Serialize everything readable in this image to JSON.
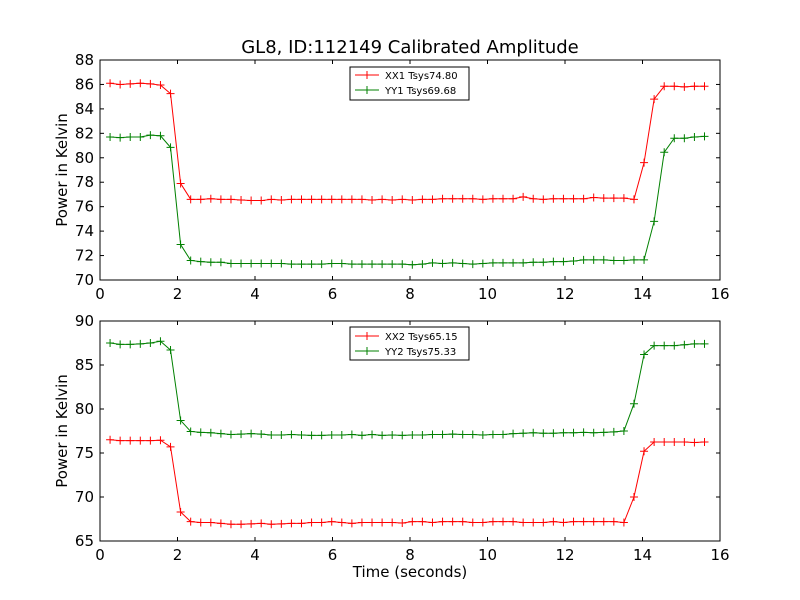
{
  "figure": {
    "title": "GL8, ID:112149 Calibrated Amplitude",
    "xlabel": "Time (seconds)"
  },
  "chart_data": [
    {
      "type": "line",
      "title": "GL8, ID:112149 Calibrated Amplitude",
      "xlabel": "",
      "ylabel": "Power in Kelvin",
      "xlim": [
        0,
        16
      ],
      "ylim": [
        70,
        88
      ],
      "xticks": [
        0,
        2,
        4,
        6,
        8,
        10,
        12,
        14,
        16
      ],
      "yticks": [
        70,
        72,
        74,
        76,
        78,
        80,
        82,
        84,
        86,
        88
      ],
      "grid": false,
      "legend_position": "top-center",
      "x": [
        0.26,
        0.52,
        0.78,
        1.04,
        1.3,
        1.56,
        1.82,
        2.08,
        2.34,
        2.6,
        2.86,
        3.12,
        3.38,
        3.64,
        3.9,
        4.16,
        4.42,
        4.68,
        4.94,
        5.2,
        5.46,
        5.72,
        5.98,
        6.24,
        6.5,
        6.76,
        7.02,
        7.28,
        7.54,
        7.8,
        8.06,
        8.32,
        8.58,
        8.84,
        9.1,
        9.36,
        9.62,
        9.88,
        10.14,
        10.4,
        10.66,
        10.92,
        11.18,
        11.44,
        11.7,
        11.96,
        12.22,
        12.48,
        12.74,
        13.0,
        13.26,
        13.52,
        13.78,
        14.04,
        14.3,
        14.56,
        14.82,
        15.08,
        15.34,
        15.6
      ],
      "series": [
        {
          "name": "XX1 Tsys74.80",
          "color": "#ff0000",
          "values": [
            86.1,
            86.0,
            86.05,
            86.1,
            86.05,
            85.95,
            85.25,
            77.9,
            76.6,
            76.6,
            76.65,
            76.6,
            76.6,
            76.55,
            76.5,
            76.5,
            76.6,
            76.55,
            76.6,
            76.6,
            76.6,
            76.6,
            76.6,
            76.6,
            76.6,
            76.6,
            76.55,
            76.6,
            76.55,
            76.6,
            76.55,
            76.6,
            76.6,
            76.65,
            76.65,
            76.65,
            76.65,
            76.6,
            76.65,
            76.65,
            76.65,
            76.8,
            76.65,
            76.6,
            76.65,
            76.65,
            76.65,
            76.65,
            76.75,
            76.7,
            76.7,
            76.7,
            76.6,
            79.6,
            84.8,
            85.85,
            85.85,
            85.8,
            85.85,
            85.85
          ]
        },
        {
          "name": "YY1 Tsys69.68",
          "color": "#008000",
          "values": [
            81.7,
            81.65,
            81.7,
            81.7,
            81.85,
            81.8,
            80.85,
            72.9,
            71.6,
            71.5,
            71.45,
            71.45,
            71.35,
            71.35,
            71.35,
            71.35,
            71.35,
            71.35,
            71.3,
            71.3,
            71.3,
            71.3,
            71.35,
            71.35,
            71.3,
            71.3,
            71.3,
            71.3,
            71.3,
            71.3,
            71.25,
            71.3,
            71.4,
            71.35,
            71.4,
            71.35,
            71.3,
            71.35,
            71.4,
            71.4,
            71.4,
            71.4,
            71.45,
            71.45,
            71.5,
            71.5,
            71.55,
            71.65,
            71.65,
            71.65,
            71.6,
            71.6,
            71.65,
            71.65,
            74.8,
            80.45,
            81.6,
            81.6,
            81.7,
            81.75
          ]
        }
      ]
    },
    {
      "type": "line",
      "title": "",
      "xlabel": "Time (seconds)",
      "ylabel": "Power in Kelvin",
      "xlim": [
        0,
        16
      ],
      "ylim": [
        65,
        90
      ],
      "xticks": [
        0,
        2,
        4,
        6,
        8,
        10,
        12,
        14,
        16
      ],
      "yticks": [
        65,
        70,
        75,
        80,
        85,
        90
      ],
      "grid": false,
      "legend_position": "top-center",
      "x": [
        0.26,
        0.52,
        0.78,
        1.04,
        1.3,
        1.56,
        1.82,
        2.08,
        2.34,
        2.6,
        2.86,
        3.12,
        3.38,
        3.64,
        3.9,
        4.16,
        4.42,
        4.68,
        4.94,
        5.2,
        5.46,
        5.72,
        5.98,
        6.24,
        6.5,
        6.76,
        7.02,
        7.28,
        7.54,
        7.8,
        8.06,
        8.32,
        8.58,
        8.84,
        9.1,
        9.36,
        9.62,
        9.88,
        10.14,
        10.4,
        10.66,
        10.92,
        11.18,
        11.44,
        11.7,
        11.96,
        12.22,
        12.48,
        12.74,
        13.0,
        13.26,
        13.52,
        13.78,
        14.04,
        14.3,
        14.56,
        14.82,
        15.08,
        15.34,
        15.6
      ],
      "series": [
        {
          "name": "XX2 Tsys65.15",
          "color": "#ff0000",
          "values": [
            76.5,
            76.4,
            76.4,
            76.4,
            76.4,
            76.45,
            75.7,
            68.3,
            67.2,
            67.1,
            67.1,
            67.0,
            66.9,
            66.9,
            66.95,
            67.0,
            66.9,
            66.95,
            67.0,
            67.0,
            67.1,
            67.1,
            67.2,
            67.1,
            67.0,
            67.1,
            67.1,
            67.1,
            67.1,
            67.05,
            67.2,
            67.2,
            67.1,
            67.2,
            67.2,
            67.2,
            67.1,
            67.1,
            67.2,
            67.2,
            67.2,
            67.1,
            67.1,
            67.1,
            67.2,
            67.1,
            67.2,
            67.2,
            67.2,
            67.2,
            67.2,
            67.1,
            70.0,
            75.2,
            76.25,
            76.25,
            76.25,
            76.25,
            76.2,
            76.25
          ]
        },
        {
          "name": "YY2 Tsys75.33",
          "color": "#008000",
          "values": [
            87.5,
            87.35,
            87.35,
            87.4,
            87.5,
            87.7,
            86.7,
            78.7,
            77.45,
            77.35,
            77.3,
            77.2,
            77.1,
            77.15,
            77.2,
            77.15,
            77.05,
            77.05,
            77.1,
            77.05,
            77.0,
            77.0,
            77.05,
            77.05,
            77.1,
            77.0,
            77.1,
            77.0,
            77.05,
            77.0,
            77.05,
            77.05,
            77.1,
            77.1,
            77.15,
            77.1,
            77.1,
            77.05,
            77.1,
            77.1,
            77.2,
            77.25,
            77.3,
            77.25,
            77.25,
            77.3,
            77.3,
            77.35,
            77.3,
            77.35,
            77.4,
            77.5,
            80.6,
            86.2,
            87.2,
            87.2,
            87.2,
            87.3,
            87.4,
            87.4
          ]
        }
      ]
    }
  ]
}
